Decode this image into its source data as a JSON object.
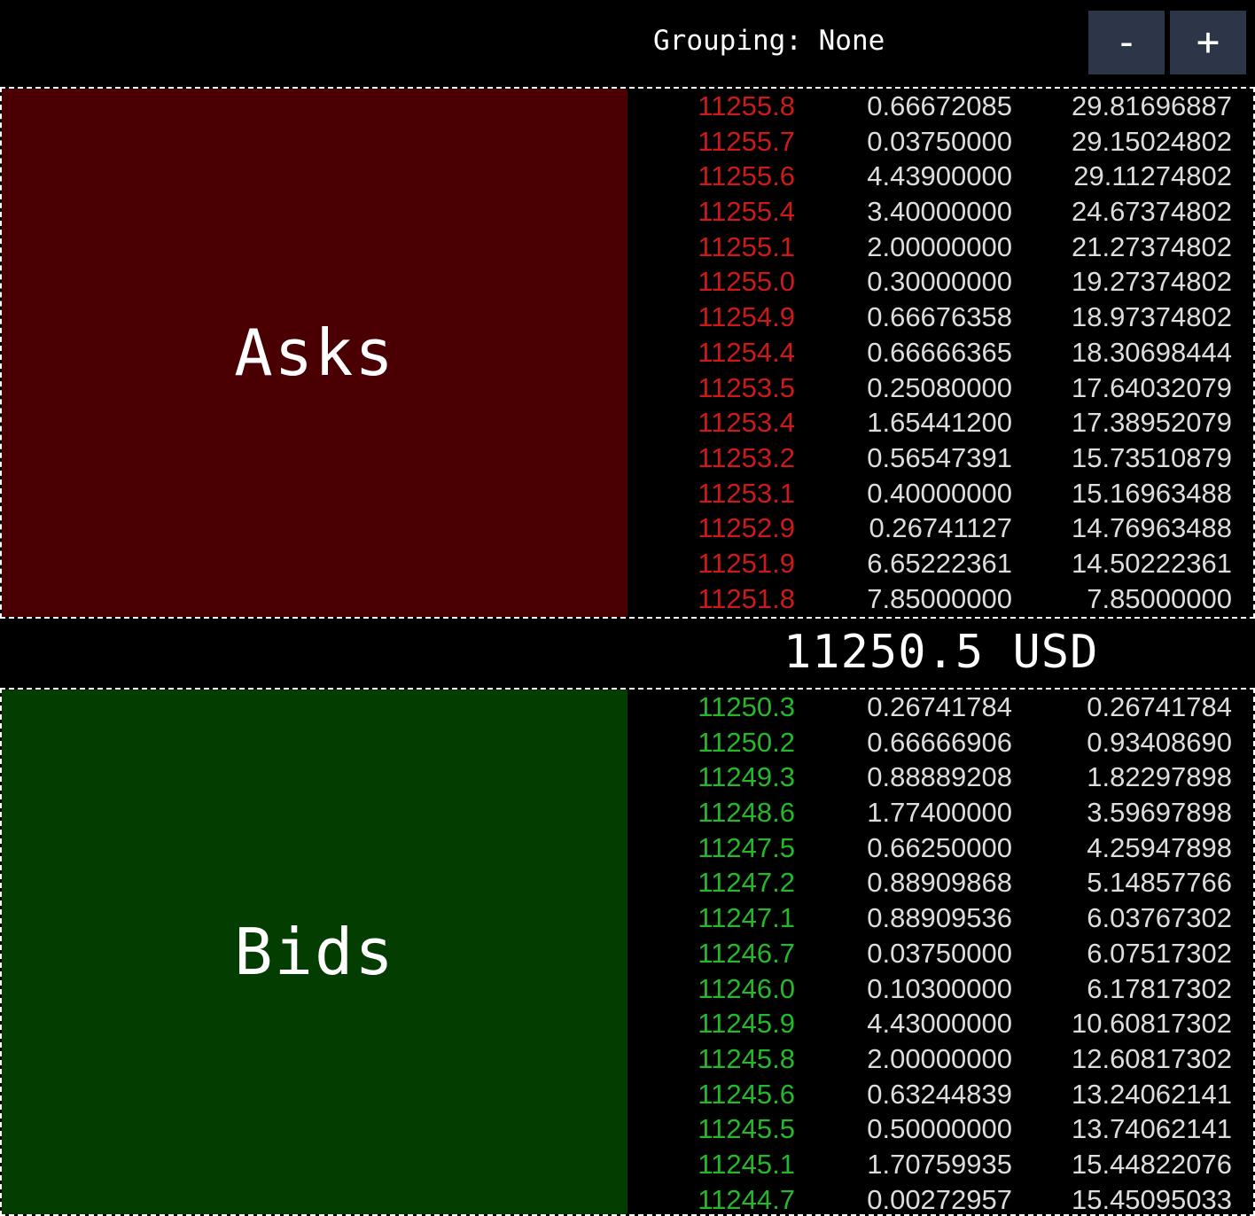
{
  "header": {
    "grouping_text": "Grouping: None",
    "decrease_label": "-",
    "increase_label": "+"
  },
  "asks": {
    "title": "Asks",
    "rows": [
      {
        "price": "11255.8",
        "size": "0.66672085",
        "total": "29.81696887"
      },
      {
        "price": "11255.7",
        "size": "0.03750000",
        "total": "29.15024802"
      },
      {
        "price": "11255.6",
        "size": "4.43900000",
        "total": "29.11274802"
      },
      {
        "price": "11255.4",
        "size": "3.40000000",
        "total": "24.67374802"
      },
      {
        "price": "11255.1",
        "size": "2.00000000",
        "total": "21.27374802"
      },
      {
        "price": "11255.0",
        "size": "0.30000000",
        "total": "19.27374802"
      },
      {
        "price": "11254.9",
        "size": "0.66676358",
        "total": "18.97374802"
      },
      {
        "price": "11254.4",
        "size": "0.66666365",
        "total": "18.30698444"
      },
      {
        "price": "11253.5",
        "size": "0.25080000",
        "total": "17.64032079"
      },
      {
        "price": "11253.4",
        "size": "1.65441200",
        "total": "17.38952079"
      },
      {
        "price": "11253.2",
        "size": "0.56547391",
        "total": "15.73510879"
      },
      {
        "price": "11253.1",
        "size": "0.40000000",
        "total": "15.16963488"
      },
      {
        "price": "11252.9",
        "size": "0.26741127",
        "total": "14.76963488"
      },
      {
        "price": "11251.9",
        "size": "6.65222361",
        "total": "14.50222361"
      },
      {
        "price": "11251.8",
        "size": "7.85000000",
        "total": "7.85000000"
      }
    ]
  },
  "spread": {
    "text": "11250.5 USD"
  },
  "bids": {
    "title": "Bids",
    "rows": [
      {
        "price": "11250.3",
        "size": "0.26741784",
        "total": "0.26741784"
      },
      {
        "price": "11250.2",
        "size": "0.66666906",
        "total": "0.93408690"
      },
      {
        "price": "11249.3",
        "size": "0.88889208",
        "total": "1.82297898"
      },
      {
        "price": "11248.6",
        "size": "1.77400000",
        "total": "3.59697898"
      },
      {
        "price": "11247.5",
        "size": "0.66250000",
        "total": "4.25947898"
      },
      {
        "price": "11247.2",
        "size": "0.88909868",
        "total": "5.14857766"
      },
      {
        "price": "11247.1",
        "size": "0.88909536",
        "total": "6.03767302"
      },
      {
        "price": "11246.7",
        "size": "0.03750000",
        "total": "6.07517302"
      },
      {
        "price": "11246.0",
        "size": "0.10300000",
        "total": "6.17817302"
      },
      {
        "price": "11245.9",
        "size": "4.43000000",
        "total": "10.60817302"
      },
      {
        "price": "11245.8",
        "size": "2.00000000",
        "total": "12.60817302"
      },
      {
        "price": "11245.6",
        "size": "0.63244839",
        "total": "13.24062141"
      },
      {
        "price": "11245.5",
        "size": "0.50000000",
        "total": "13.74062141"
      },
      {
        "price": "11245.1",
        "size": "1.70759935",
        "total": "15.44822076"
      },
      {
        "price": "11244.7",
        "size": "0.00272957",
        "total": "15.45095033"
      }
    ]
  }
}
